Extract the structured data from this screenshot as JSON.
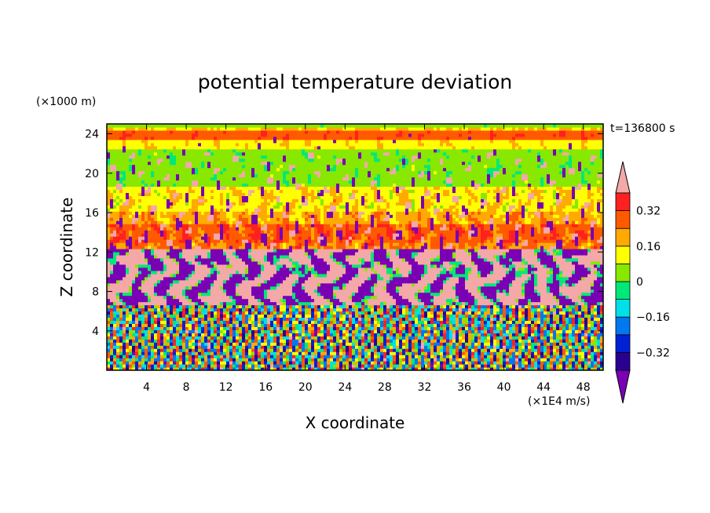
{
  "chart_data": {
    "type": "heatmap",
    "title": "potential temperature deviation",
    "xlabel": "X coordinate",
    "ylabel": "Z coordinate",
    "x_unit": "(×1E4 m/s)",
    "y_unit": "(×1000 m)",
    "time_label": "t=136800 s",
    "xlim": [
      0,
      50
    ],
    "ylim": [
      0,
      25
    ],
    "x_ticks": [
      4,
      8,
      12,
      16,
      20,
      24,
      28,
      32,
      36,
      40,
      44,
      48
    ],
    "y_ticks": [
      4,
      8,
      12,
      16,
      20,
      24
    ],
    "colorbar": {
      "levels": [
        -0.4,
        -0.32,
        -0.24,
        -0.16,
        -0.08,
        0,
        0.08,
        0.16,
        0.24,
        0.32,
        0.4
      ],
      "tick_values": [
        -0.32,
        -0.16,
        0,
        0.16,
        0.32
      ],
      "tick_labels": [
        "−0.32",
        "−0.16",
        "0",
        "0.16",
        "0.32"
      ],
      "colors": [
        "#7a00b4",
        "#2a0090",
        "#0022d4",
        "#0078f0",
        "#00e0e8",
        "#00e878",
        "#88e800",
        "#ffff00",
        "#ffaa00",
        "#ff5a00",
        "#ff2020",
        "#f4a8a8"
      ],
      "extend": "both"
    },
    "grid": false
  }
}
